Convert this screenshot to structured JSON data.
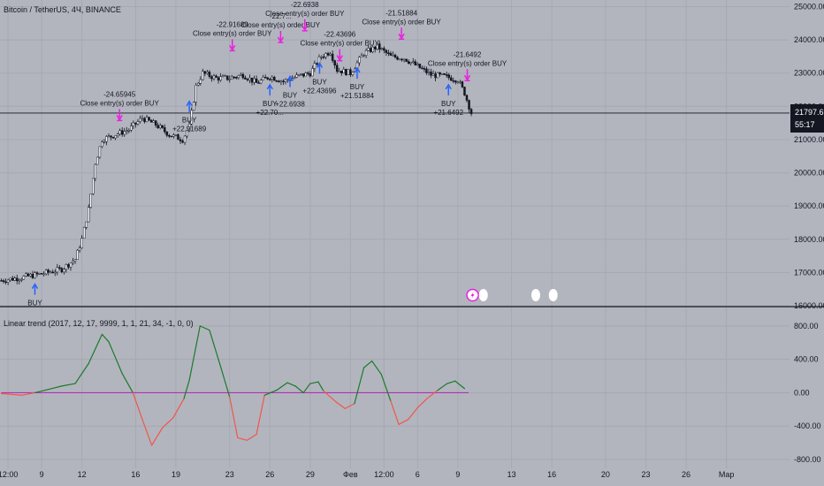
{
  "header": {
    "symbol_title": "Bitcoin / TetherUS, 4Ч, BINANCE"
  },
  "price_badge": {
    "price": "21797.69",
    "countdown": "55:17"
  },
  "colors": {
    "background": "#b2b5be",
    "grid": "#a6a9b1",
    "candle": "#131722",
    "buy_arrow": "#2962ff",
    "close_arrow": "#e91ee0",
    "indicator_up": "#1b7a2a",
    "indicator_down": "#f2554a",
    "zero_line": "#b42fb3",
    "price_line": "#131722"
  },
  "chart_data": [
    {
      "type": "candlestick",
      "title": "Bitcoin / TetherUS, 4Ч, BINANCE",
      "y_ticks": [
        16000,
        17000,
        18000,
        19000,
        20000,
        21000,
        22000,
        23000,
        24000,
        25000
      ],
      "y_tick_labels": [
        "16000.00",
        "17000.00",
        "18000.00",
        "19000.00",
        "20000.00",
        "21000.00",
        "22000.00",
        "23000.00",
        "24000.00",
        "25000.00"
      ],
      "ylim": [
        16000,
        25200
      ],
      "x_ticks": [
        {
          "label": "12:00",
          "day": 6.5
        },
        {
          "label": "9",
          "day": 9
        },
        {
          "label": "12",
          "day": 12
        },
        {
          "label": "16",
          "day": 16
        },
        {
          "label": "19",
          "day": 19
        },
        {
          "label": "23",
          "day": 23
        },
        {
          "label": "26",
          "day": 26
        },
        {
          "label": "29",
          "day": 29
        },
        {
          "label": "Фев",
          "day": 32
        },
        {
          "label": "12:00",
          "day": 34.5
        },
        {
          "label": "6",
          "day": 37
        },
        {
          "label": "9",
          "day": 40
        },
        {
          "label": "13",
          "day": 44
        },
        {
          "label": "16",
          "day": 47
        },
        {
          "label": "20",
          "day": 51
        },
        {
          "label": "23",
          "day": 54
        },
        {
          "label": "26",
          "day": 57
        },
        {
          "label": "Мар",
          "day": 60
        }
      ],
      "xlim": [
        5.9,
        64.7
      ],
      "current_price": 21797.69,
      "price_path": [
        [
          6.0,
          16760
        ],
        [
          7.5,
          16850
        ],
        [
          9.0,
          16960
        ],
        [
          10.5,
          17100
        ],
        [
          11.5,
          17400
        ],
        [
          12.0,
          18000
        ],
        [
          12.5,
          18900
        ],
        [
          13.0,
          20300
        ],
        [
          13.5,
          21000
        ],
        [
          14.5,
          21150
        ],
        [
          15.5,
          21300
        ],
        [
          16.5,
          21650
        ],
        [
          17.5,
          21450
        ],
        [
          18.5,
          21150
        ],
        [
          19.5,
          21000
        ],
        [
          20.0,
          21400
        ],
        [
          20.5,
          22600
        ],
        [
          21.0,
          23000
        ],
        [
          22.0,
          22850
        ],
        [
          23.0,
          22850
        ],
        [
          24.0,
          22950
        ],
        [
          25.0,
          22700
        ],
        [
          26.0,
          22900
        ],
        [
          27.0,
          22750
        ],
        [
          28.0,
          22900
        ],
        [
          29.0,
          23000
        ],
        [
          29.8,
          23500
        ],
        [
          30.5,
          23650
        ],
        [
          31.0,
          23100
        ],
        [
          32.0,
          23000
        ],
        [
          33.0,
          23600
        ],
        [
          34.0,
          23800
        ],
        [
          35.0,
          23500
        ],
        [
          36.0,
          23450
        ],
        [
          37.0,
          23200
        ],
        [
          38.0,
          22950
        ],
        [
          39.0,
          22900
        ],
        [
          40.0,
          22800
        ],
        [
          40.5,
          22400
        ],
        [
          41.0,
          21800
        ]
      ],
      "buy_markers": [
        {
          "day": 8.5,
          "price": 16650,
          "label": "BUY",
          "value": ""
        },
        {
          "day": 20.0,
          "price": 22150,
          "label": "BUY",
          "value": "+22.91689"
        },
        {
          "day": 26.0,
          "price": 22650,
          "label": "BUY",
          "value": "+22.70..."
        },
        {
          "day": 27.5,
          "price": 22900,
          "label": "BUY",
          "value": "+22.6938"
        },
        {
          "day": 29.7,
          "price": 23300,
          "label": "BUY",
          "value": "+22.43696"
        },
        {
          "day": 32.5,
          "price": 23150,
          "label": "BUY",
          "value": "+21.51884"
        },
        {
          "day": 39.3,
          "price": 22650,
          "label": "BUY",
          "value": "+21.6492"
        }
      ],
      "close_markers": [
        {
          "day": 14.8,
          "price": 21600,
          "value": "-24.65945",
          "label": "Close entry(s) order BUY"
        },
        {
          "day": 23.2,
          "price": 23700,
          "value": "-22.91689",
          "label": "Close entry(s) order BUY"
        },
        {
          "day": 26.8,
          "price": 23950,
          "value": "-22.7...",
          "label": "Close entry(s) order BUY"
        },
        {
          "day": 28.6,
          "price": 24300,
          "value": "-22.6938",
          "label": "Close entry(s) order BUY"
        },
        {
          "day": 31.2,
          "price": 23400,
          "value": "-22.43696",
          "label": "Close entry(s) order BUY"
        },
        {
          "day": 35.8,
          "price": 24050,
          "value": "-21.51884",
          "label": "Close entry(s) order BUY"
        },
        {
          "day": 40.7,
          "price": 22800,
          "value": "-21.6492",
          "label": "Close entry(s) order BUY"
        }
      ]
    },
    {
      "type": "line",
      "title": "Linear trend (2017, 12, 17, 9999, 1, 1, 21, 34, -1, 0, 0)",
      "y_ticks": [
        -800,
        -400,
        0,
        400,
        800
      ],
      "y_tick_labels": [
        "-800.00",
        "-400.00",
        "0.00",
        "400.00",
        "800.00"
      ],
      "ylim": [
        -800,
        1000
      ],
      "zero_value": 0,
      "series": [
        {
          "values": [
            [
              6.0,
              -10
            ],
            [
              7.5,
              -30
            ],
            [
              8.5,
              0
            ],
            [
              9.5,
              40
            ],
            [
              10.5,
              80
            ],
            [
              11.5,
              110
            ],
            [
              12.5,
              350
            ],
            [
              13.5,
              700
            ],
            [
              14.0,
              610
            ],
            [
              15.0,
              230
            ],
            [
              15.8,
              0
            ],
            [
              16.5,
              -320
            ],
            [
              17.2,
              -630
            ],
            [
              18.0,
              -420
            ],
            [
              18.8,
              -300
            ],
            [
              19.6,
              -70
            ],
            [
              20.0,
              150
            ],
            [
              20.8,
              800
            ],
            [
              21.5,
              750
            ],
            [
              22.3,
              330
            ],
            [
              23.0,
              -50
            ],
            [
              23.6,
              -540
            ],
            [
              24.3,
              -570
            ],
            [
              25.0,
              -500
            ],
            [
              25.6,
              -30
            ],
            [
              26.5,
              30
            ],
            [
              27.3,
              120
            ],
            [
              27.9,
              80
            ],
            [
              28.5,
              0
            ],
            [
              29.0,
              110
            ],
            [
              29.6,
              130
            ],
            [
              30.0,
              20
            ],
            [
              31.0,
              -120
            ],
            [
              31.6,
              -190
            ],
            [
              32.3,
              -130
            ],
            [
              33.0,
              300
            ],
            [
              33.6,
              380
            ],
            [
              34.3,
              220
            ],
            [
              35.0,
              -100
            ],
            [
              35.6,
              -380
            ],
            [
              36.3,
              -320
            ],
            [
              37.0,
              -180
            ],
            [
              37.7,
              -70
            ],
            [
              38.5,
              30
            ],
            [
              39.2,
              110
            ],
            [
              39.8,
              140
            ],
            [
              40.5,
              50
            ]
          ]
        }
      ]
    }
  ],
  "widgets": {
    "lightning_icon": "lightning-icon",
    "event_dots": 3
  }
}
